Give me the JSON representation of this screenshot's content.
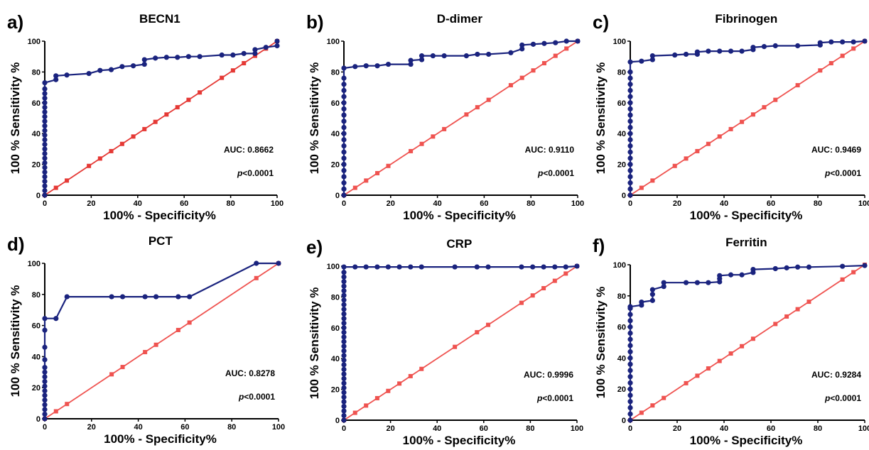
{
  "figure": {
    "xlabel": "100% - Specificity%",
    "ylabel": "100 % Sensitivity %",
    "colors": {
      "roc": "#1a237e",
      "reference": "#ef5350",
      "reference_dark": "#e53935"
    }
  },
  "chart_data": [
    {
      "type": "line",
      "panel": "a)",
      "title": "BECN1",
      "auc_text": "AUC: 0.8662",
      "p_prefix": "p",
      "p_text": "<0.0001",
      "xlim": [
        0,
        100
      ],
      "ylim": [
        0,
        100
      ],
      "xticks": [
        0,
        20,
        40,
        60,
        80,
        100
      ],
      "yticks": [
        0,
        20,
        40,
        60,
        80,
        100
      ],
      "series": [
        {
          "role": "roc",
          "x": [
            0,
            0,
            0,
            0,
            0,
            0,
            0,
            0,
            0,
            0,
            0,
            0,
            0,
            0,
            0,
            0,
            0,
            0,
            0,
            0,
            0,
            0,
            0,
            0,
            0,
            4.8,
            4.8,
            9.5,
            19,
            23.8,
            28.6,
            33.3,
            38.1,
            42.9,
            42.9,
            47.6,
            52.4,
            57.1,
            61.9,
            66.7,
            76.2,
            81,
            85.7,
            90.5,
            90.5,
            95.2,
            100,
            100
          ],
          "y": [
            0,
            3,
            6,
            9,
            12,
            15,
            18,
            21,
            24,
            27,
            30,
            33,
            36,
            39,
            42,
            45,
            48,
            51,
            54,
            57,
            60,
            63,
            66,
            69,
            73,
            75,
            77.5,
            78,
            79,
            81,
            81.5,
            83.5,
            84,
            85,
            88,
            89,
            89.5,
            89.5,
            90,
            90,
            91,
            91,
            92,
            92,
            94.5,
            96,
            97,
            100
          ]
        },
        {
          "role": "reference",
          "x": [
            0,
            4.8,
            9.5,
            19,
            23.8,
            28.6,
            33.3,
            38.1,
            42.9,
            47.6,
            52.4,
            57.1,
            61.9,
            66.7,
            76.2,
            81,
            85.7,
            90.5,
            95.2,
            100
          ],
          "y": [
            0,
            4.8,
            9.5,
            19,
            23.8,
            28.6,
            33.3,
            38.1,
            42.9,
            47.6,
            52.4,
            57.1,
            61.9,
            66.7,
            76.2,
            81,
            85.7,
            90.5,
            95.2,
            100
          ]
        }
      ]
    },
    {
      "type": "line",
      "panel": "b)",
      "title": "D-dimer",
      "auc_text": "AUC: 0.9110",
      "p_prefix": "p",
      "p_text": "<0.0001",
      "xlim": [
        0,
        100
      ],
      "ylim": [
        0,
        100
      ],
      "xticks": [
        0,
        20,
        40,
        60,
        80,
        100
      ],
      "yticks": [
        0,
        20,
        40,
        60,
        80,
        100
      ],
      "series": [
        {
          "role": "roc",
          "x": [
            0,
            0,
            0,
            0,
            0,
            0,
            0,
            0,
            0,
            0,
            0,
            0,
            0,
            0,
            0,
            0,
            0,
            0,
            0,
            0,
            0,
            4.8,
            9.5,
            14.3,
            19,
            28.6,
            28.6,
            33.3,
            33.3,
            38.1,
            42.9,
            52.4,
            57.1,
            61.9,
            71.4,
            76.2,
            76.2,
            81,
            85.7,
            90.5,
            95.2,
            100
          ],
          "y": [
            0,
            4,
            8,
            12,
            16,
            20,
            24,
            28,
            32,
            36,
            40,
            44,
            48,
            52,
            56,
            60,
            64,
            68,
            72,
            76,
            82.5,
            83.5,
            84,
            84,
            85,
            85,
            87.5,
            88,
            90.5,
            90.5,
            90.5,
            90.5,
            91.5,
            91.5,
            92.5,
            95,
            97.5,
            98,
            98.5,
            99,
            100,
            100
          ]
        },
        {
          "role": "reference",
          "x": [
            0,
            4.8,
            9.5,
            14.3,
            19,
            28.6,
            33.3,
            38.1,
            42.9,
            52.4,
            57.1,
            61.9,
            71.4,
            76.2,
            81,
            85.7,
            90.5,
            95.2,
            100
          ],
          "y": [
            0,
            4.8,
            9.5,
            14.3,
            19,
            28.6,
            33.3,
            38.1,
            42.9,
            52.4,
            57.1,
            61.9,
            71.4,
            76.2,
            81,
            85.7,
            90.5,
            95.2,
            100
          ]
        }
      ]
    },
    {
      "type": "line",
      "panel": "c)",
      "title": "Fibrinogen",
      "auc_text": "AUC: 0.9469",
      "p_prefix": "p",
      "p_text": "<0.0001",
      "xlim": [
        0,
        100
      ],
      "ylim": [
        0,
        100
      ],
      "xticks": [
        0,
        20,
        40,
        60,
        80,
        100
      ],
      "yticks": [
        0,
        20,
        40,
        60,
        80,
        100
      ],
      "series": [
        {
          "role": "roc",
          "x": [
            0,
            0,
            0,
            0,
            0,
            0,
            0,
            0,
            0,
            0,
            0,
            0,
            0,
            0,
            0,
            0,
            0,
            0,
            0,
            0,
            0,
            0,
            4.8,
            9.5,
            9.5,
            19,
            23.8,
            28.6,
            28.6,
            33.3,
            38.1,
            42.9,
            47.6,
            52.4,
            52.4,
            57.1,
            61.9,
            71.4,
            81,
            81,
            85.7,
            90.5,
            95.2,
            100
          ],
          "y": [
            0,
            4,
            8,
            12,
            16,
            20,
            24,
            28,
            32,
            36,
            40,
            44,
            48,
            52,
            56,
            60,
            64,
            68,
            72,
            76,
            80,
            86.5,
            87,
            88,
            90.5,
            91,
            91.5,
            91.5,
            93,
            93.5,
            93.5,
            93.5,
            93.5,
            94.5,
            96,
            96.5,
            97,
            97,
            97.5,
            99,
            99.5,
            99.5,
            99.5,
            100
          ]
        },
        {
          "role": "reference",
          "x": [
            0,
            4.8,
            9.5,
            19,
            23.8,
            28.6,
            33.3,
            38.1,
            42.9,
            47.6,
            52.4,
            57.1,
            61.9,
            71.4,
            81,
            85.7,
            90.5,
            95.2,
            100
          ],
          "y": [
            0,
            4.8,
            9.5,
            19,
            23.8,
            28.6,
            33.3,
            38.1,
            42.9,
            47.6,
            52.4,
            57.1,
            61.9,
            71.4,
            81,
            85.7,
            90.5,
            95.2,
            100
          ]
        }
      ]
    },
    {
      "type": "line",
      "panel": "d)",
      "title": "PCT",
      "auc_text": "AUC: 0.8278",
      "p_prefix": "p",
      "p_text": "<0.0001",
      "xlim": [
        0,
        100
      ],
      "ylim": [
        0,
        100
      ],
      "xticks": [
        0,
        20,
        40,
        60,
        80,
        100
      ],
      "yticks": [
        0,
        20,
        40,
        60,
        80,
        100
      ],
      "series": [
        {
          "role": "roc",
          "x": [
            0,
            0,
            0,
            0,
            0,
            0,
            0,
            0,
            0,
            0,
            0,
            0,
            0,
            0,
            0,
            0,
            4.8,
            9.5,
            28.6,
            33.3,
            42.9,
            47.6,
            57.1,
            61.9,
            90.5,
            100
          ],
          "y": [
            0,
            3,
            6,
            9,
            12,
            15,
            18,
            21,
            24,
            27,
            30,
            33,
            38,
            46,
            57,
            64.5,
            64.5,
            78.5,
            78.5,
            78.5,
            78.5,
            78.5,
            78.5,
            78.5,
            100,
            100
          ]
        },
        {
          "role": "reference",
          "x": [
            0,
            4.8,
            9.5,
            28.6,
            33.3,
            42.9,
            47.6,
            57.1,
            61.9,
            90.5,
            100
          ],
          "y": [
            0,
            4.8,
            9.5,
            28.6,
            33.3,
            42.9,
            47.6,
            57.1,
            61.9,
            90.5,
            100
          ]
        }
      ]
    },
    {
      "type": "line",
      "panel": "e)",
      "title": "CRP",
      "auc_text": "AUC: 0.9996",
      "p_prefix": "p",
      "p_text": "<0.0001",
      "xlim": [
        0,
        100
      ],
      "ylim": [
        0,
        100
      ],
      "xticks": [
        0,
        20,
        40,
        60,
        80,
        100
      ],
      "yticks": [
        0,
        20,
        40,
        60,
        80,
        100
      ],
      "series": [
        {
          "role": "roc",
          "x": [
            0,
            0,
            0,
            0,
            0,
            0,
            0,
            0,
            0,
            0,
            0,
            0,
            0,
            0,
            0,
            0,
            0,
            0,
            0,
            0,
            0,
            0,
            0,
            0,
            0,
            0,
            0,
            0,
            0,
            0,
            0,
            0,
            0,
            0,
            4.8,
            9.5,
            14.3,
            19,
            23.8,
            28.6,
            33.3,
            47.6,
            57.1,
            61.9,
            76.2,
            81,
            85.7,
            90.5,
            95.2,
            100
          ],
          "y": [
            0,
            3,
            6,
            9,
            12,
            15,
            18,
            21,
            24,
            27,
            30,
            33,
            36,
            39,
            42,
            45,
            48,
            51,
            54,
            57,
            60,
            63,
            66,
            69,
            72,
            75,
            78,
            81,
            84,
            87,
            90,
            93,
            96,
            99.5,
            99.5,
            99.5,
            99.5,
            99.5,
            99.5,
            99.5,
            99.5,
            99.5,
            99.5,
            99.5,
            99.5,
            99.5,
            99.5,
            99.5,
            99.5,
            100
          ]
        },
        {
          "role": "reference",
          "x": [
            0,
            4.8,
            9.5,
            14.3,
            19,
            23.8,
            28.6,
            33.3,
            47.6,
            57.1,
            61.9,
            76.2,
            81,
            85.7,
            90.5,
            95.2,
            100
          ],
          "y": [
            0,
            4.8,
            9.5,
            14.3,
            19,
            23.8,
            28.6,
            33.3,
            47.6,
            57.1,
            61.9,
            76.2,
            81,
            85.7,
            90.5,
            95.2,
            100
          ]
        }
      ]
    },
    {
      "type": "line",
      "panel": "f)",
      "title": "Ferritin",
      "auc_text": "AUC: 0.9284",
      "p_prefix": "p",
      "p_text": "<0.0001",
      "xlim": [
        0,
        100
      ],
      "ylim": [
        0,
        100
      ],
      "xticks": [
        0,
        20,
        40,
        60,
        80,
        100
      ],
      "yticks": [
        0,
        20,
        40,
        60,
        80,
        100
      ],
      "series": [
        {
          "role": "roc",
          "x": [
            0,
            0,
            0,
            0,
            0,
            0,
            0,
            0,
            0,
            0,
            0,
            0,
            0,
            0,
            0,
            0,
            0,
            0,
            0,
            0,
            0,
            4.8,
            4.8,
            9.5,
            9.5,
            9.5,
            14.3,
            14.3,
            23.8,
            28.6,
            33.3,
            38.1,
            38.1,
            38.1,
            42.9,
            47.6,
            52.4,
            52.4,
            61.9,
            66.7,
            71.4,
            76.2,
            90.5,
            100
          ],
          "y": [
            0,
            4,
            8,
            12,
            16,
            20,
            24,
            28,
            32,
            36,
            40,
            44,
            48,
            52,
            56,
            60,
            64,
            68,
            72,
            73,
            73,
            74,
            76,
            77,
            81,
            84,
            86,
            88.5,
            88.5,
            88.5,
            88.5,
            89,
            91,
            93,
            93.5,
            93.5,
            95,
            97,
            97.5,
            98,
            98.5,
            98.5,
            99,
            99.5
          ]
        },
        {
          "role": "reference",
          "x": [
            0,
            4.8,
            9.5,
            14.3,
            23.8,
            28.6,
            33.3,
            38.1,
            42.9,
            47.6,
            52.4,
            61.9,
            66.7,
            71.4,
            76.2,
            90.5,
            95.2,
            100
          ],
          "y": [
            0,
            4.8,
            9.5,
            14.3,
            23.8,
            28.6,
            33.3,
            38.1,
            42.9,
            47.6,
            52.4,
            61.9,
            66.7,
            71.4,
            76.2,
            90.5,
            95.2,
            100
          ]
        }
      ]
    }
  ]
}
